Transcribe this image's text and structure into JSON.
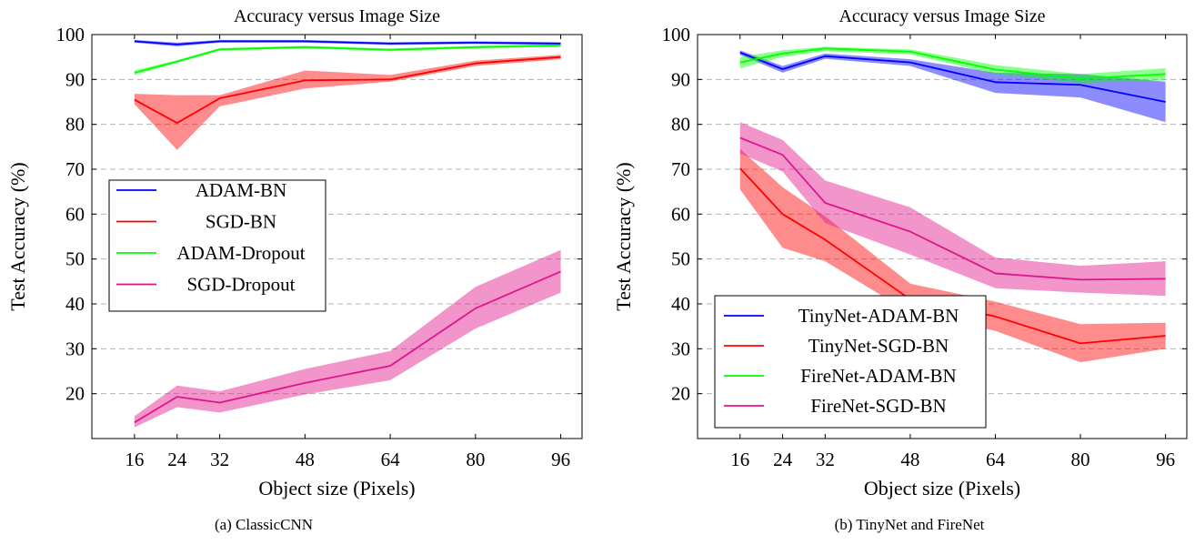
{
  "chart_data": [
    {
      "type": "line",
      "title": "Accuracy versus Image Size",
      "xlabel": "Object size (Pixels)",
      "ylabel": "Test Accuracy (%)",
      "caption": "(a) ClassicCNN",
      "x": [
        16,
        24,
        32,
        48,
        64,
        80,
        96
      ],
      "xticks": [
        "16",
        "24",
        "32",
        "48",
        "64",
        "80",
        "96"
      ],
      "yticks": [
        "20",
        "30",
        "40",
        "50",
        "60",
        "70",
        "80",
        "90",
        "100"
      ],
      "xlim": [
        8,
        100
      ],
      "ylim": [
        10,
        100
      ],
      "grid": "horizontal dashed",
      "legend": "center-left",
      "series": [
        {
          "name": "ADAM-BN",
          "color": "#0000ff",
          "values": [
            98.5,
            97.8,
            98.5,
            98.5,
            98.0,
            98.2,
            98.0
          ],
          "upper": [
            98.8,
            98.2,
            98.8,
            98.8,
            98.3,
            98.5,
            98.3
          ],
          "lower": [
            98.2,
            97.4,
            98.2,
            98.2,
            97.7,
            97.9,
            97.7
          ]
        },
        {
          "name": "SGD-BN",
          "color": "#ff0000",
          "values": [
            85.5,
            80.3,
            85.8,
            89.8,
            90.0,
            93.6,
            95.0
          ],
          "upper": [
            86.8,
            86.5,
            86.5,
            92.0,
            91.0,
            94.2,
            95.5
          ],
          "lower": [
            84.5,
            74.3,
            84.0,
            88.0,
            89.5,
            93.0,
            94.5
          ]
        },
        {
          "name": "ADAM-Dropout",
          "color": "#00ff00",
          "values": [
            91.5,
            94.0,
            96.7,
            97.2,
            96.6,
            97.2,
            97.6
          ],
          "upper": [
            92.0,
            94.3,
            97.0,
            97.5,
            96.9,
            97.5,
            97.9
          ],
          "lower": [
            91.0,
            93.7,
            96.4,
            96.9,
            96.3,
            96.9,
            97.3
          ]
        },
        {
          "name": "SGD-Dropout",
          "color": "#e0148c",
          "values": [
            13.6,
            19.3,
            18.0,
            22.4,
            26.2,
            39.0,
            47.2
          ],
          "upper": [
            15.0,
            21.8,
            20.5,
            25.5,
            29.5,
            43.8,
            52.0
          ],
          "lower": [
            12.5,
            17.0,
            15.8,
            19.8,
            23.0,
            34.5,
            42.5
          ]
        }
      ]
    },
    {
      "type": "line",
      "title": "Accuracy versus Image Size",
      "xlabel": "Object size (Pixels)",
      "ylabel": "Test Accuracy (%)",
      "caption": "(b) TinyNet and FireNet",
      "x": [
        16,
        24,
        32,
        48,
        64,
        80,
        96
      ],
      "xticks": [
        "16",
        "24",
        "32",
        "48",
        "64",
        "80",
        "96"
      ],
      "yticks": [
        "20",
        "30",
        "40",
        "50",
        "60",
        "70",
        "80",
        "90",
        "100"
      ],
      "xlim": [
        8,
        100
      ],
      "ylim": [
        10,
        100
      ],
      "grid": "horizontal dashed",
      "legend": "bottom-left",
      "series": [
        {
          "name": "TinyNet-ADAM-BN",
          "color": "#0000ff",
          "values": [
            96.0,
            92.3,
            95.2,
            93.8,
            89.4,
            88.8,
            85.0
          ],
          "upper": [
            96.5,
            93.0,
            95.8,
            94.5,
            91.5,
            91.2,
            89.5
          ],
          "lower": [
            95.5,
            91.5,
            94.6,
            93.0,
            87.0,
            86.0,
            80.5
          ]
        },
        {
          "name": "TinyNet-SGD-BN",
          "color": "#ff0000",
          "values": [
            70.2,
            60.0,
            54.3,
            41.0,
            37.2,
            31.2,
            32.9
          ],
          "upper": [
            74.5,
            66.0,
            59.5,
            44.5,
            40.5,
            35.5,
            35.8
          ],
          "lower": [
            65.5,
            52.5,
            49.5,
            38.0,
            34.0,
            27.0,
            30.0
          ]
        },
        {
          "name": "FireNet-ADAM-BN",
          "color": "#00ff00",
          "values": [
            93.8,
            95.8,
            96.9,
            96.2,
            92.2,
            90.2,
            91.2
          ],
          "upper": [
            95.0,
            96.5,
            97.3,
            96.7,
            93.2,
            91.2,
            92.5
          ],
          "lower": [
            92.5,
            95.0,
            96.3,
            95.6,
            91.2,
            89.2,
            89.8
          ]
        },
        {
          "name": "FireNet-SGD-BN",
          "color": "#e0148c",
          "values": [
            77.0,
            73.2,
            62.5,
            56.1,
            46.8,
            45.4,
            45.6
          ],
          "upper": [
            80.5,
            76.5,
            67.5,
            61.5,
            50.3,
            48.5,
            49.5
          ],
          "lower": [
            73.5,
            69.5,
            58.0,
            51.0,
            43.5,
            42.5,
            41.8
          ]
        }
      ]
    }
  ]
}
